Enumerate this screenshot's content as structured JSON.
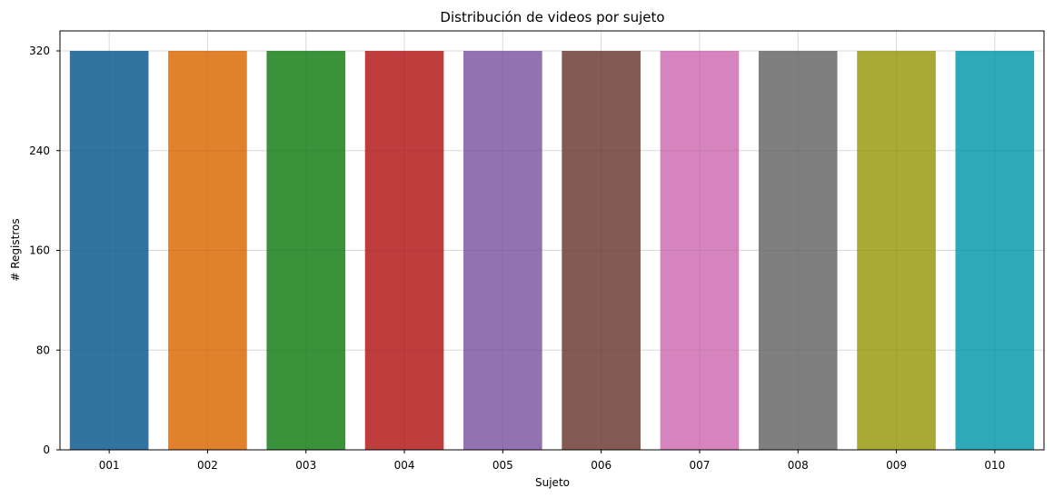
{
  "chart_data": {
    "type": "bar",
    "title": "Distribución de videos por sujeto",
    "xlabel": "Sujeto",
    "ylabel": "# Registros",
    "categories": [
      "001",
      "002",
      "003",
      "004",
      "005",
      "006",
      "007",
      "008",
      "009",
      "010"
    ],
    "values": [
      320,
      320,
      320,
      320,
      320,
      320,
      320,
      320,
      320,
      320
    ],
    "colors": [
      "#3274a1",
      "#e1812c",
      "#3a923a",
      "#c03d3e",
      "#9372b2",
      "#845b53",
      "#d684bd",
      "#7f7f7f",
      "#a9aa35",
      "#2ea9b8"
    ],
    "yticks": [
      0,
      80,
      160,
      240,
      320
    ],
    "ylim": [
      0,
      320
    ],
    "grid": true,
    "legend": "none"
  }
}
